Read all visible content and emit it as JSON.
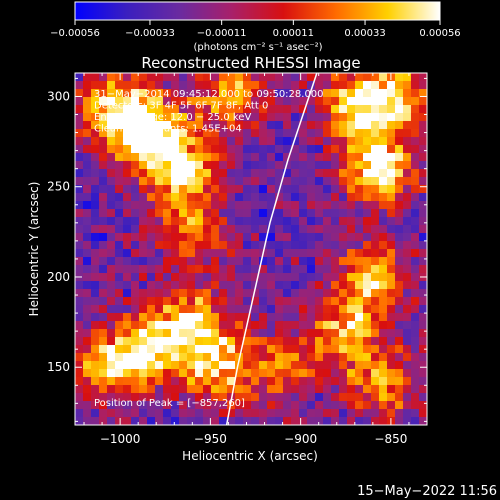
{
  "chart_data": {
    "type": "heatmap",
    "title": "Reconstructed RHESSI Image",
    "xlabel": "Heliocentric X (arcsec)",
    "ylabel": "Heliocentric Y (arcsec)",
    "xlim": [
      -1025,
      -830
    ],
    "ylim": [
      118,
      313
    ],
    "x_ticks": [
      -1000,
      -950,
      -900,
      -850
    ],
    "y_ticks": [
      150,
      200,
      250,
      300
    ],
    "x_tick_labels": [
      "−1000",
      "−950",
      "−900",
      "−850"
    ],
    "y_tick_labels": [
      "150",
      "200",
      "250",
      "300"
    ],
    "colorbar": {
      "range": [
        -0.00056,
        0.00056
      ],
      "tick_values": [
        -0.00056,
        -0.00033,
        -0.00011,
        0.00011,
        0.00033,
        0.00056
      ],
      "tick_labels": [
        "−0.00056",
        "−0.00033",
        "−0.00011",
        "0.00011",
        "0.00033",
        "0.00056"
      ],
      "unit_label": "(photons cm⁻² s⁻¹ asec⁻²)",
      "colors": [
        "#0000ff",
        "#3b1fbf",
        "#6a2aa0",
        "#a8206a",
        "#d81010",
        "#ff6a00",
        "#ffd000",
        "#ffffff"
      ]
    },
    "annotations": [
      "31−May−2014 09:45:12.000 to 09:50:28.000",
      "Detectors: 3F 4F 5F 6F 7F 8F, Att 0",
      "Energy Range: 12.0 − 25.0 keV",
      "Clean     Total counts: 1.45E+04"
    ],
    "peak_label": "Position of Peak = [−857,260]",
    "limb_curve": [
      [
        -941,
        118
      ],
      [
        -935,
        150
      ],
      [
        -926,
        190
      ],
      [
        -917,
        230
      ],
      [
        -907,
        265
      ],
      [
        -897,
        295
      ],
      [
        -891,
        313
      ]
    ],
    "hot_spots": [
      {
        "x": -985,
        "y": 280,
        "level": 0.95
      },
      {
        "x": -965,
        "y": 258,
        "level": 0.85
      },
      {
        "x": -1005,
        "y": 295,
        "level": 0.75
      },
      {
        "x": -940,
        "y": 300,
        "level": 0.7
      },
      {
        "x": -960,
        "y": 225,
        "level": 0.55
      },
      {
        "x": -985,
        "y": 160,
        "level": 0.85
      },
      {
        "x": -960,
        "y": 175,
        "level": 0.8
      },
      {
        "x": -945,
        "y": 150,
        "level": 0.75
      },
      {
        "x": -1010,
        "y": 150,
        "level": 0.6
      },
      {
        "x": -857,
        "y": 260,
        "level": 1.0
      },
      {
        "x": -870,
        "y": 295,
        "level": 0.85
      },
      {
        "x": -845,
        "y": 300,
        "level": 0.7
      },
      {
        "x": -860,
        "y": 200,
        "level": 0.75
      },
      {
        "x": -875,
        "y": 170,
        "level": 0.7
      },
      {
        "x": -855,
        "y": 140,
        "level": 0.6
      },
      {
        "x": -910,
        "y": 150,
        "level": 0.5
      }
    ]
  },
  "footer": {
    "timestamp": "15−May−2022 11:56"
  }
}
